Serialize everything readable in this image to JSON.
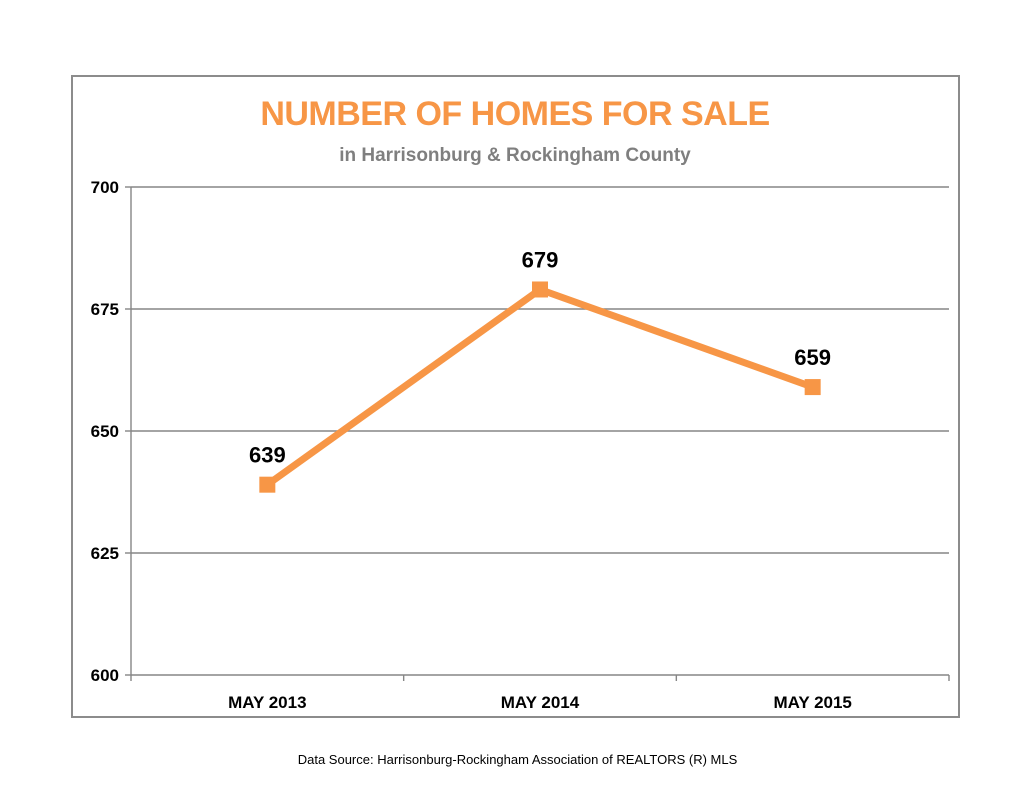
{
  "chart_data": {
    "type": "line",
    "title": "NUMBER OF HOMES  FOR SALE",
    "subtitle": "in Harrisonburg  & Rockingham County",
    "categories": [
      "MAY 2013",
      "MAY 2014",
      "MAY 2015"
    ],
    "series": [
      {
        "values": [
          639,
          679,
          659
        ],
        "color": "#f79646"
      }
    ],
    "data_labels": [
      "639",
      "679",
      "659"
    ],
    "ylim": [
      600,
      700
    ],
    "yticks": [
      600,
      625,
      650,
      675,
      700
    ],
    "grid": true,
    "legend": "none"
  },
  "colors": {
    "title": "#f79646",
    "subtitle": "#7f7f7f",
    "line": "#f79646",
    "grid": "#868686",
    "frame": "#8c8c8c"
  },
  "footer": {
    "source": "Data Source: Harrisonburg-Rockingham Association of REALTORS (R) MLS"
  }
}
